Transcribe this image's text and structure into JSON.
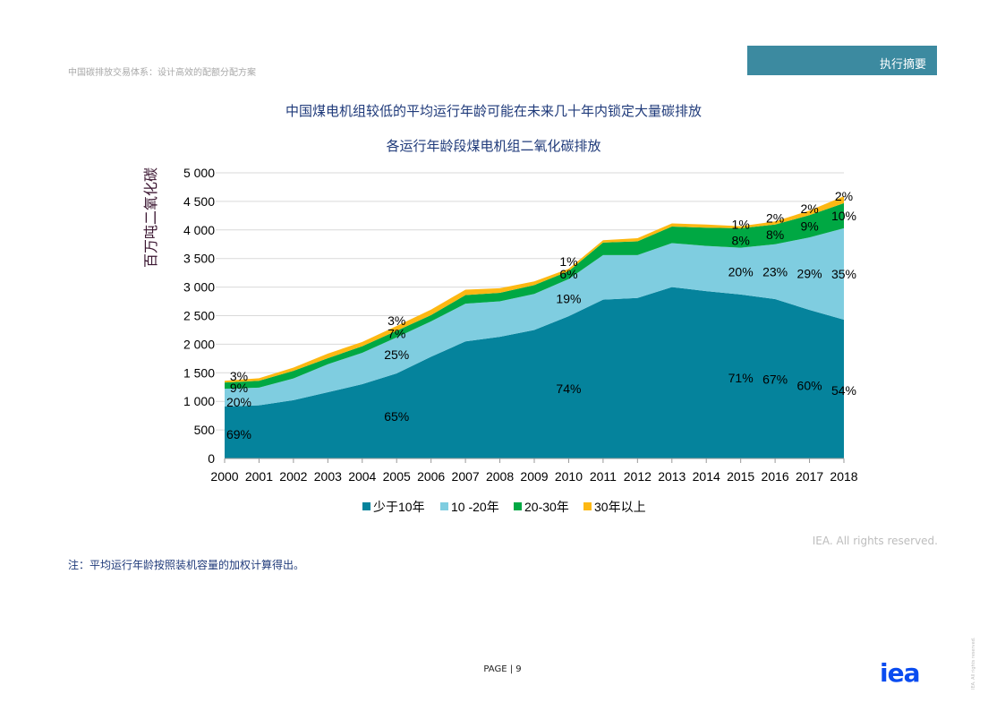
{
  "header": {
    "doc_title": "中国碳排放交易体系：设计高效的配额分配方案",
    "section_tab": "执行摘要"
  },
  "headline": "中国煤电机组较低的平均运行年龄可能在未来几十年内锁定大量碳排放",
  "note": "注：平均运行年龄按照装机容量的加权计算得出。",
  "rights": "IEA. All rights reserved.",
  "page_label": "PAGE | 9",
  "logo_text": "iea",
  "side_rights": "IEA. All rights reserved.",
  "chart_data": {
    "type": "area",
    "stacked": true,
    "title": "各运行年龄段煤电机组二氧化碳排放",
    "ylabel": "百万吨二氧化碳",
    "xlabel": "",
    "ylim": [
      0,
      5000
    ],
    "yticks": [
      0,
      500,
      1000,
      1500,
      2000,
      2500,
      3000,
      3500,
      4000,
      4500,
      5000
    ],
    "ytick_labels": [
      "0",
      "500",
      "1 000",
      "1 500",
      "2 000",
      "2 500",
      "3 000",
      "3 500",
      "4 000",
      "4 500",
      "5 000"
    ],
    "grid": true,
    "legend_position": "bottom",
    "categories": [
      "2000",
      "2001",
      "2002",
      "2003",
      "2004",
      "2005",
      "2006",
      "2007",
      "2008",
      "2009",
      "2010",
      "2011",
      "2012",
      "2013",
      "2014",
      "2015",
      "2016",
      "2017",
      "2018"
    ],
    "series": [
      {
        "name": "少于10年",
        "color": "#05839c",
        "values": [
          909,
          930,
          1020,
          1160,
          1300,
          1490,
          1780,
          2050,
          2130,
          2250,
          2490,
          2780,
          2810,
          3000,
          2930,
          2870,
          2790,
          2600,
          2430
        ]
      },
      {
        "name": "10 -20年",
        "color": "#7fcde0",
        "values": [
          311,
          310,
          380,
          490,
          550,
          630,
          620,
          660,
          620,
          630,
          650,
          780,
          750,
          770,
          790,
          820,
          960,
          1270,
          1600
        ]
      },
      {
        "name": "20-30年",
        "color": "#00a843",
        "values": [
          110,
          120,
          135,
          105,
          115,
          115,
          110,
          150,
          150,
          155,
          140,
          220,
          240,
          290,
          320,
          340,
          345,
          390,
          440
        ]
      },
      {
        "name": "30年以上",
        "color": "#fdb813",
        "values": [
          30,
          45,
          55,
          80,
          75,
          85,
          95,
          95,
          80,
          65,
          40,
          40,
          55,
          55,
          55,
          35,
          55,
          80,
          120
        ]
      }
    ],
    "annotations": [
      {
        "x": "2000",
        "y": 1440,
        "text": "3%"
      },
      {
        "x": "2000",
        "y": 1240,
        "text": "9%"
      },
      {
        "x": "2000",
        "y": 990,
        "text": "20%"
      },
      {
        "x": "2000",
        "y": 420,
        "text": "69%"
      },
      {
        "x": "2005",
        "y": 2410,
        "text": "3%"
      },
      {
        "x": "2005",
        "y": 2190,
        "text": "7%"
      },
      {
        "x": "2005",
        "y": 1820,
        "text": "25%"
      },
      {
        "x": "2005",
        "y": 740,
        "text": "65%"
      },
      {
        "x": "2010",
        "y": 3450,
        "text": "1%"
      },
      {
        "x": "2010",
        "y": 3230,
        "text": "6%"
      },
      {
        "x": "2010",
        "y": 2800,
        "text": "19%"
      },
      {
        "x": "2010",
        "y": 1220,
        "text": "74%"
      },
      {
        "x": "2015",
        "y": 4100,
        "text": "1%"
      },
      {
        "x": "2015",
        "y": 3820,
        "text": "8%"
      },
      {
        "x": "2015",
        "y": 3270,
        "text": "20%"
      },
      {
        "x": "2015",
        "y": 1410,
        "text": "71%"
      },
      {
        "x": "2016",
        "y": 4210,
        "text": "2%"
      },
      {
        "x": "2016",
        "y": 3920,
        "text": "8%"
      },
      {
        "x": "2016",
        "y": 3270,
        "text": "23%"
      },
      {
        "x": "2016",
        "y": 1390,
        "text": "67%"
      },
      {
        "x": "2017",
        "y": 4370,
        "text": "2%"
      },
      {
        "x": "2017",
        "y": 4070,
        "text": "9%"
      },
      {
        "x": "2017",
        "y": 3240,
        "text": "29%"
      },
      {
        "x": "2017",
        "y": 1280,
        "text": "60%"
      },
      {
        "x": "2018",
        "y": 4590,
        "text": "2%"
      },
      {
        "x": "2018",
        "y": 4250,
        "text": "10%"
      },
      {
        "x": "2018",
        "y": 3230,
        "text": "35%"
      },
      {
        "x": "2018",
        "y": 1190,
        "text": "54%"
      }
    ]
  }
}
